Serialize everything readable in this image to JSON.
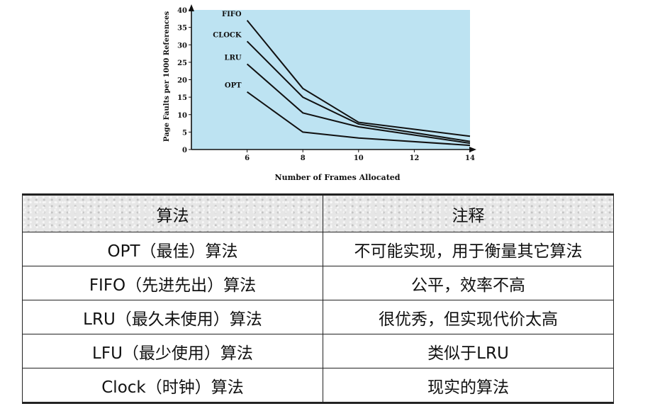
{
  "chart_data": {
    "type": "line",
    "xlabel": "Number of Frames Allocated",
    "ylabel": "Page Faults per 1000 References",
    "x": [
      6,
      8,
      10,
      14
    ],
    "xticks": [
      6,
      8,
      10,
      12,
      14
    ],
    "yticks": [
      0,
      5,
      10,
      15,
      20,
      25,
      30,
      35,
      40
    ],
    "xlim": [
      4,
      14
    ],
    "ylim": [
      0,
      40
    ],
    "series": [
      {
        "name": "FIFO",
        "values": [
          37,
          17.5,
          7.8,
          3.8
        ]
      },
      {
        "name": "CLOCK",
        "values": [
          31,
          15,
          7.3,
          2.3
        ]
      },
      {
        "name": "LRU",
        "values": [
          24.5,
          10.5,
          6.5,
          1.8
        ]
      },
      {
        "name": "OPT",
        "values": [
          16.5,
          5,
          3.3,
          1.2
        ]
      }
    ],
    "plot_background": "#bde3f2",
    "line_color": "#111111",
    "grid": false,
    "legend": "inline-left"
  },
  "table": {
    "headers": [
      "算法",
      "注释"
    ],
    "rows": [
      [
        "OPT（最佳）算法",
        "不可能实现，用于衡量其它算法"
      ],
      [
        "FIFO（先进先出）算法",
        "公平，效率不高"
      ],
      [
        "LRU（最久未使用）算法",
        "很优秀，但实现代价太高"
      ],
      [
        "LFU（最少使用）算法",
        "类似于LRU"
      ],
      [
        "Clock（时钟）算法",
        "现实的算法"
      ]
    ]
  }
}
